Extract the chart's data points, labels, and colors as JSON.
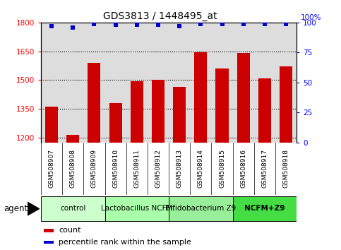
{
  "title": "GDS3813 / 1448495_at",
  "samples": [
    "GSM508907",
    "GSM508908",
    "GSM508909",
    "GSM508910",
    "GSM508911",
    "GSM508912",
    "GSM508913",
    "GSM508914",
    "GSM508915",
    "GSM508916",
    "GSM508917",
    "GSM508918"
  ],
  "counts": [
    1360,
    1215,
    1590,
    1380,
    1495,
    1500,
    1465,
    1645,
    1560,
    1640,
    1510,
    1570
  ],
  "percentile_ranks": [
    97,
    96,
    99,
    98,
    98,
    98,
    97,
    99,
    99,
    99,
    99,
    99
  ],
  "bar_color": "#cc0000",
  "dot_color": "#0000cc",
  "ylim_left": [
    1175,
    1800
  ],
  "ylim_right": [
    0,
    100
  ],
  "yticks_left": [
    1200,
    1350,
    1500,
    1650,
    1800
  ],
  "yticks_right": [
    0,
    25,
    50,
    75,
    100
  ],
  "groups": [
    {
      "label": "control",
      "start": 0,
      "end": 2,
      "color": "#ccffcc"
    },
    {
      "label": "Lactobacillus NCFM",
      "start": 3,
      "end": 5,
      "color": "#aaffaa"
    },
    {
      "label": "Bifidobacterium Z9",
      "start": 6,
      "end": 8,
      "color": "#99ee99"
    },
    {
      "label": "NCFM+Z9",
      "start": 9,
      "end": 11,
      "color": "#44dd44"
    }
  ],
  "agent_label": "agent",
  "legend_count_label": "count",
  "legend_percentile_label": "percentile rank within the sample",
  "background_color": "#ffffff",
  "plot_bg_color": "#dddddd",
  "xtick_bg_color": "#cccccc"
}
